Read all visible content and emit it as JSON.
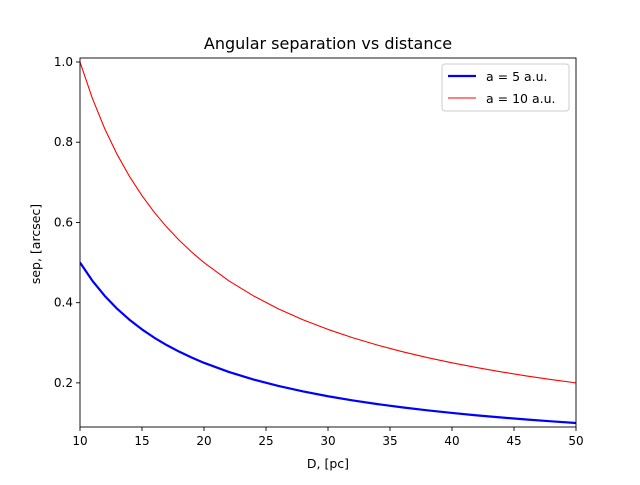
{
  "chart_data": {
    "type": "line",
    "title": "Angular separation vs distance",
    "xlabel": "D, [pc]",
    "ylabel": "sep, [arcsec]",
    "xlim": [
      10,
      50
    ],
    "ylim": [
      0.09,
      1.01
    ],
    "xticks": [
      10,
      15,
      20,
      25,
      30,
      35,
      40,
      45,
      50
    ],
    "yticks": [
      0.2,
      0.4,
      0.6,
      0.8,
      1.0
    ],
    "xtick_labels": [
      "10",
      "15",
      "20",
      "25",
      "30",
      "35",
      "40",
      "45",
      "50"
    ],
    "ytick_labels": [
      "0.2",
      "0.4",
      "0.6",
      "0.8",
      "1.0"
    ],
    "grid": false,
    "legend_position": "top-right",
    "series": [
      {
        "name": "a = 5 a.u.",
        "color": "#0000ff",
        "x": [
          10,
          11,
          12,
          13,
          14,
          15,
          16,
          17,
          18,
          19,
          20,
          22,
          24,
          26,
          28,
          30,
          32,
          34,
          36,
          38,
          40,
          42,
          44,
          46,
          48,
          50
        ],
        "y": [
          0.5,
          0.4545,
          0.4167,
          0.3846,
          0.3571,
          0.3333,
          0.3125,
          0.2941,
          0.2778,
          0.2632,
          0.25,
          0.2273,
          0.2083,
          0.1923,
          0.1786,
          0.1667,
          0.1563,
          0.1471,
          0.1389,
          0.1316,
          0.125,
          0.119,
          0.1136,
          0.1087,
          0.1042,
          0.1
        ]
      },
      {
        "name": "a = 10 a.u.",
        "color": "#ff0000",
        "x": [
          10,
          11,
          12,
          13,
          14,
          15,
          16,
          17,
          18,
          19,
          20,
          22,
          24,
          26,
          28,
          30,
          32,
          34,
          36,
          38,
          40,
          42,
          44,
          46,
          48,
          50
        ],
        "y": [
          1.0,
          0.9091,
          0.8333,
          0.7692,
          0.7143,
          0.6667,
          0.625,
          0.5882,
          0.5556,
          0.5263,
          0.5,
          0.4545,
          0.4167,
          0.3846,
          0.3571,
          0.3333,
          0.3125,
          0.2941,
          0.2778,
          0.2632,
          0.25,
          0.2381,
          0.2273,
          0.2174,
          0.2083,
          0.2
        ]
      }
    ]
  }
}
